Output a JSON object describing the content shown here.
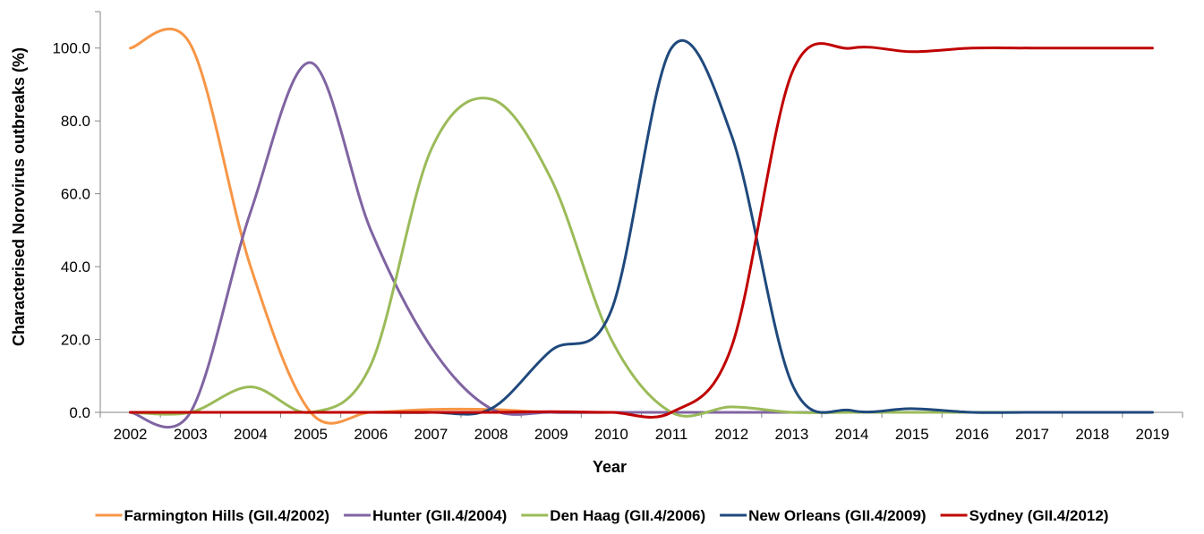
{
  "chart_data": {
    "type": "line",
    "title": "",
    "xlabel": "Year",
    "ylabel": "Characterised Norovirus outbreaks (%)",
    "x": [
      "2002",
      "2003",
      "2004",
      "2005",
      "2006",
      "2007",
      "2008",
      "2009",
      "2010",
      "2011",
      "2012",
      "2013",
      "2014",
      "2015",
      "2016",
      "2017",
      "2018",
      "2019"
    ],
    "yticks": [
      "0.0",
      "20.0",
      "40.0",
      "60.0",
      "80.0",
      "100.0"
    ],
    "ylim": [
      0,
      110
    ],
    "grid": false,
    "legend_position": "bottom",
    "series": [
      {
        "name": "Farmington Hills (GII.4/2002)",
        "color": "#F79646",
        "values": [
          100,
          101,
          40,
          0,
          0,
          0.8,
          0.8,
          0,
          0,
          0,
          0,
          0,
          0,
          0,
          0,
          0,
          0,
          0
        ]
      },
      {
        "name": "Hunter (GII.4/2004)",
        "color": "#8064A2",
        "values": [
          0,
          0,
          55,
          96,
          50,
          18,
          1,
          0,
          0,
          0,
          0,
          0,
          0,
          0,
          0,
          0,
          0,
          0
        ]
      },
      {
        "name": "Den Haag (GII.4/2006)",
        "color": "#9BBB59",
        "values": [
          0,
          0,
          7,
          0,
          13,
          72,
          86,
          64,
          20,
          0,
          1.5,
          0,
          0,
          0,
          0,
          0,
          0,
          0
        ]
      },
      {
        "name": "New Orleans (GII.4/2009)",
        "color": "#1F497D",
        "values": [
          0,
          0,
          0,
          0,
          0,
          0,
          1,
          17,
          28,
          100,
          76,
          8,
          0.5,
          1,
          0,
          0,
          0,
          0
        ]
      },
      {
        "name": "Sydney (GII.4/2012)",
        "color": "#C00000",
        "values": [
          0,
          0,
          0,
          0,
          0,
          0,
          0,
          0.2,
          0,
          0,
          18,
          93,
          100,
          99,
          100,
          100,
          100,
          100
        ]
      }
    ]
  }
}
